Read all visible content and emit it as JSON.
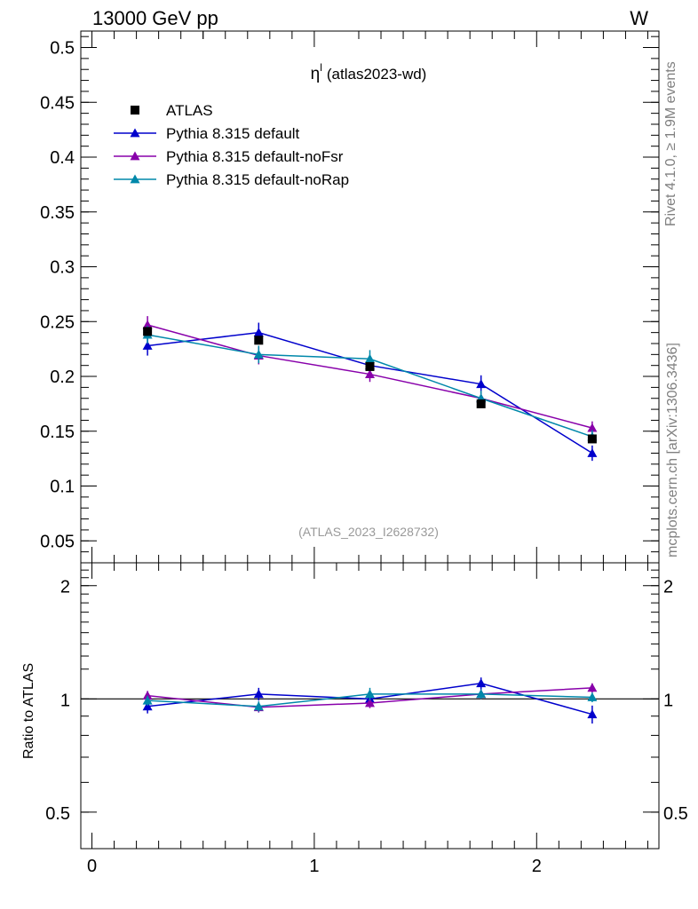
{
  "header": {
    "left": "13000 GeV pp",
    "right": "W"
  },
  "side_labels": {
    "top": "Rivet 4.1.0, ≥ 1.9M events",
    "bottom": "mcplots.cern.ch [arXiv:1306.3436]"
  },
  "watermark": "(ATLAS_2023_I2628732)",
  "chart_data": [
    {
      "type": "scatter",
      "panel": "main",
      "title": "η",
      "title_superscript": "l",
      "title_suffix": "(atlas2023-wd)",
      "xlabel": "",
      "ylabel": "",
      "xlim": [
        -0.05,
        2.55
      ],
      "ylim": [
        0.03,
        0.515
      ],
      "yticks": [
        0.05,
        0.1,
        0.15,
        0.2,
        0.25,
        0.3,
        0.35,
        0.4,
        0.45,
        0.5
      ],
      "ytick_labels": [
        "0.05",
        "0.1",
        "0.15",
        "0.2",
        "0.25",
        "0.3",
        "0.35",
        "0.4",
        "0.45",
        "0.5"
      ],
      "legend_position": "top-left",
      "x": [
        0.25,
        0.75,
        1.25,
        1.75,
        2.25
      ],
      "series": [
        {
          "name": "ATLAS",
          "color": "#000000",
          "marker": "square",
          "values": [
            0.241,
            0.233,
            0.209,
            0.175,
            0.143
          ],
          "errors": [
            0.003,
            0.003,
            0.003,
            0.003,
            0.003
          ]
        },
        {
          "name": "Pythia 8.315 default",
          "color": "#0000cc",
          "marker": "triangle",
          "values": [
            0.228,
            0.24,
            0.21,
            0.193,
            0.13
          ],
          "errors": [
            0.009,
            0.009,
            0.008,
            0.008,
            0.007
          ]
        },
        {
          "name": "Pythia 8.315 default-noFsr",
          "color": "#8800aa",
          "marker": "triangle",
          "values": [
            0.247,
            0.219,
            0.202,
            0.18,
            0.153
          ],
          "errors": [
            0.008,
            0.008,
            0.007,
            0.007,
            0.006
          ]
        },
        {
          "name": "Pythia 8.315 default-noRap",
          "color": "#0088aa",
          "marker": "triangle",
          "values": [
            0.238,
            0.22,
            0.216,
            0.18,
            0.145
          ],
          "errors": [
            0.008,
            0.008,
            0.008,
            0.007,
            0.006
          ]
        }
      ]
    },
    {
      "type": "line",
      "panel": "ratio",
      "ylabel": "Ratio to ATLAS",
      "xlim": [
        -0.05,
        2.55
      ],
      "ylim": [
        0.4,
        2.3
      ],
      "yticks": [
        0.5,
        1,
        2
      ],
      "ytick_labels": [
        "0.5",
        "1",
        "2"
      ],
      "xticks": [
        0,
        1,
        2
      ],
      "xtick_labels": [
        "0",
        "1",
        "2"
      ],
      "x": [
        0.25,
        0.75,
        1.25,
        1.75,
        2.25
      ],
      "series": [
        {
          "name": "Pythia 8.315 default",
          "color": "#0000cc",
          "values": [
            0.955,
            1.03,
            1.0,
            1.1,
            0.91
          ],
          "errors": [
            0.04,
            0.04,
            0.04,
            0.04,
            0.05
          ]
        },
        {
          "name": "Pythia 8.315 default-noFsr",
          "color": "#8800aa",
          "values": [
            1.02,
            0.95,
            0.975,
            1.03,
            1.07
          ],
          "errors": [
            0.03,
            0.03,
            0.03,
            0.03,
            0.03
          ]
        },
        {
          "name": "Pythia 8.315 default-noRap",
          "color": "#0088aa",
          "values": [
            0.99,
            0.955,
            1.03,
            1.03,
            1.01
          ],
          "errors": [
            0.03,
            0.03,
            0.04,
            0.03,
            0.03
          ]
        }
      ]
    }
  ]
}
